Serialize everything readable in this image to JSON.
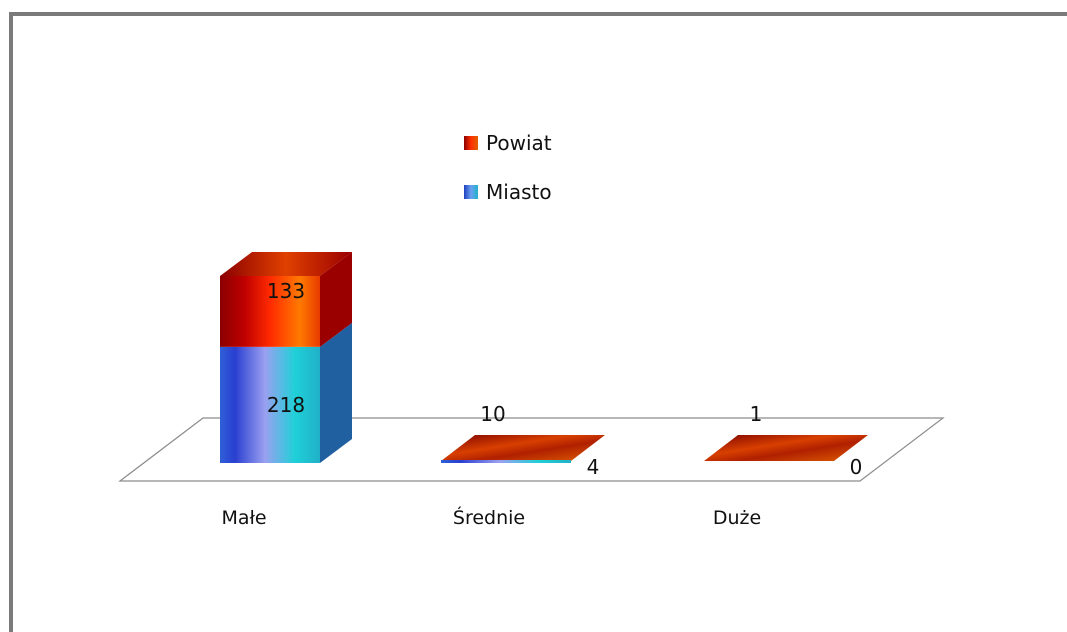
{
  "chart_data": {
    "type": "bar",
    "stacked": true,
    "three_d": true,
    "categories": [
      "Małe",
      "Średnie",
      "Duże"
    ],
    "series": [
      {
        "name": "Miasto",
        "values": [
          218,
          4,
          0
        ]
      },
      {
        "name": "Powiat",
        "values": [
          133,
          10,
          1
        ]
      }
    ],
    "title": "",
    "xlabel": "",
    "ylabel": "",
    "ylim": [
      0,
      351
    ],
    "grid": false,
    "axis_ticks_visible": false,
    "legend_placement": "top-center",
    "colors": {
      "Miasto": {
        "front": [
          "#2f5fd8",
          "#9aa0f0",
          "#1fd0d8"
        ],
        "side": "#2060a0",
        "top": "#2a4fb0"
      },
      "Powiat": {
        "front": [
          "#8b0000",
          "#ff2a00",
          "#ff7a00"
        ],
        "side": "#9a0000",
        "top": "#e83a00"
      },
      "floor_stroke": "#8c8c8c",
      "frame": "#7a7a7a"
    }
  }
}
